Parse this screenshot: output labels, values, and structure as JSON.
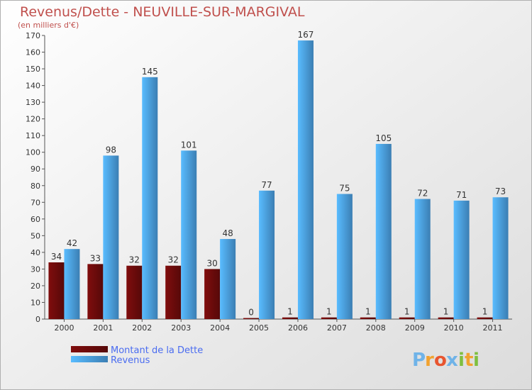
{
  "chart_data": {
    "type": "bar",
    "title": "Revenus/Dette - NEUVILLE-SUR-MARGIVAL",
    "unit_label": "(en milliers d'€)",
    "categories": [
      "2000",
      "2001",
      "2002",
      "2003",
      "2004",
      "2005",
      "2006",
      "2007",
      "2008",
      "2009",
      "2010",
      "2011"
    ],
    "series": [
      {
        "name": "Montant de la Dette",
        "color": "#6b0b0b",
        "values": [
          34,
          33,
          32,
          32,
          30,
          0,
          1,
          1,
          1,
          1,
          1,
          1
        ]
      },
      {
        "name": "Revenus",
        "color": "#4a9de0",
        "values": [
          42,
          98,
          145,
          101,
          48,
          77,
          167,
          75,
          105,
          72,
          71,
          73
        ]
      }
    ],
    "ylim": [
      0,
      170
    ],
    "ytick_step": 10,
    "grid": false,
    "legend_position": "bottom-left"
  },
  "brand": {
    "logo_text": "Proxiti",
    "letters": [
      {
        "ch": "P",
        "color": "#6fb3e8"
      },
      {
        "ch": "r",
        "color": "#f2a22e"
      },
      {
        "ch": "o",
        "color": "#e8552f"
      },
      {
        "ch": "x",
        "color": "#6fb3e8"
      },
      {
        "ch": "i",
        "color": "#7fbf3f"
      },
      {
        "ch": "t",
        "color": "#f2a22e"
      },
      {
        "ch": "i",
        "color": "#7fbf3f"
      }
    ]
  }
}
